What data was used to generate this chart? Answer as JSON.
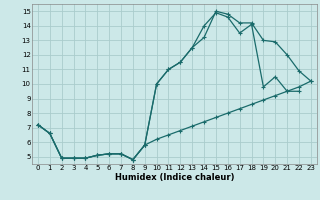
{
  "xlabel": "Humidex (Indice chaleur)",
  "bg_color": "#cce8e8",
  "grid_color": "#aacccc",
  "line_color": "#1a6b6b",
  "xlim": [
    -0.5,
    23.5
  ],
  "ylim": [
    4.5,
    15.5
  ],
  "xticks": [
    0,
    1,
    2,
    3,
    4,
    5,
    6,
    7,
    8,
    9,
    10,
    11,
    12,
    13,
    14,
    15,
    16,
    17,
    18,
    19,
    20,
    21,
    22,
    23
  ],
  "yticks": [
    5,
    6,
    7,
    8,
    9,
    10,
    11,
    12,
    13,
    14,
    15
  ],
  "line1_x": [
    0,
    1,
    2,
    3,
    4,
    5,
    6,
    7,
    8,
    9,
    10,
    11,
    12,
    13,
    14,
    15,
    16,
    17,
    18,
    19,
    20,
    21,
    22,
    23
  ],
  "line1_y": [
    7.2,
    6.6,
    4.9,
    4.9,
    4.9,
    5.1,
    5.2,
    5.2,
    4.8,
    5.8,
    10.0,
    11.0,
    11.5,
    12.5,
    13.2,
    15.0,
    14.8,
    14.2,
    14.2,
    13.0,
    12.9,
    12.0,
    10.9,
    10.2
  ],
  "line2_x": [
    0,
    1,
    2,
    3,
    4,
    5,
    6,
    7,
    8,
    9,
    10,
    11,
    12,
    13,
    14,
    15,
    16,
    17,
    18,
    19,
    20,
    21,
    22
  ],
  "line2_y": [
    7.2,
    6.6,
    4.9,
    4.9,
    4.9,
    5.1,
    5.2,
    5.2,
    4.8,
    5.8,
    10.0,
    11.0,
    11.5,
    12.5,
    14.0,
    14.9,
    14.6,
    13.5,
    14.1,
    9.8,
    10.5,
    9.5,
    9.5
  ],
  "line3_x": [
    0,
    1,
    2,
    3,
    4,
    5,
    6,
    7,
    8,
    9,
    10,
    11,
    12,
    13,
    14,
    15,
    16,
    17,
    18,
    19,
    20,
    21,
    22,
    23
  ],
  "line3_y": [
    7.2,
    6.6,
    4.9,
    4.9,
    4.9,
    5.1,
    5.2,
    5.2,
    4.8,
    5.8,
    6.2,
    6.5,
    6.8,
    7.1,
    7.4,
    7.7,
    8.0,
    8.3,
    8.6,
    8.9,
    9.2,
    9.5,
    9.8,
    10.2
  ]
}
